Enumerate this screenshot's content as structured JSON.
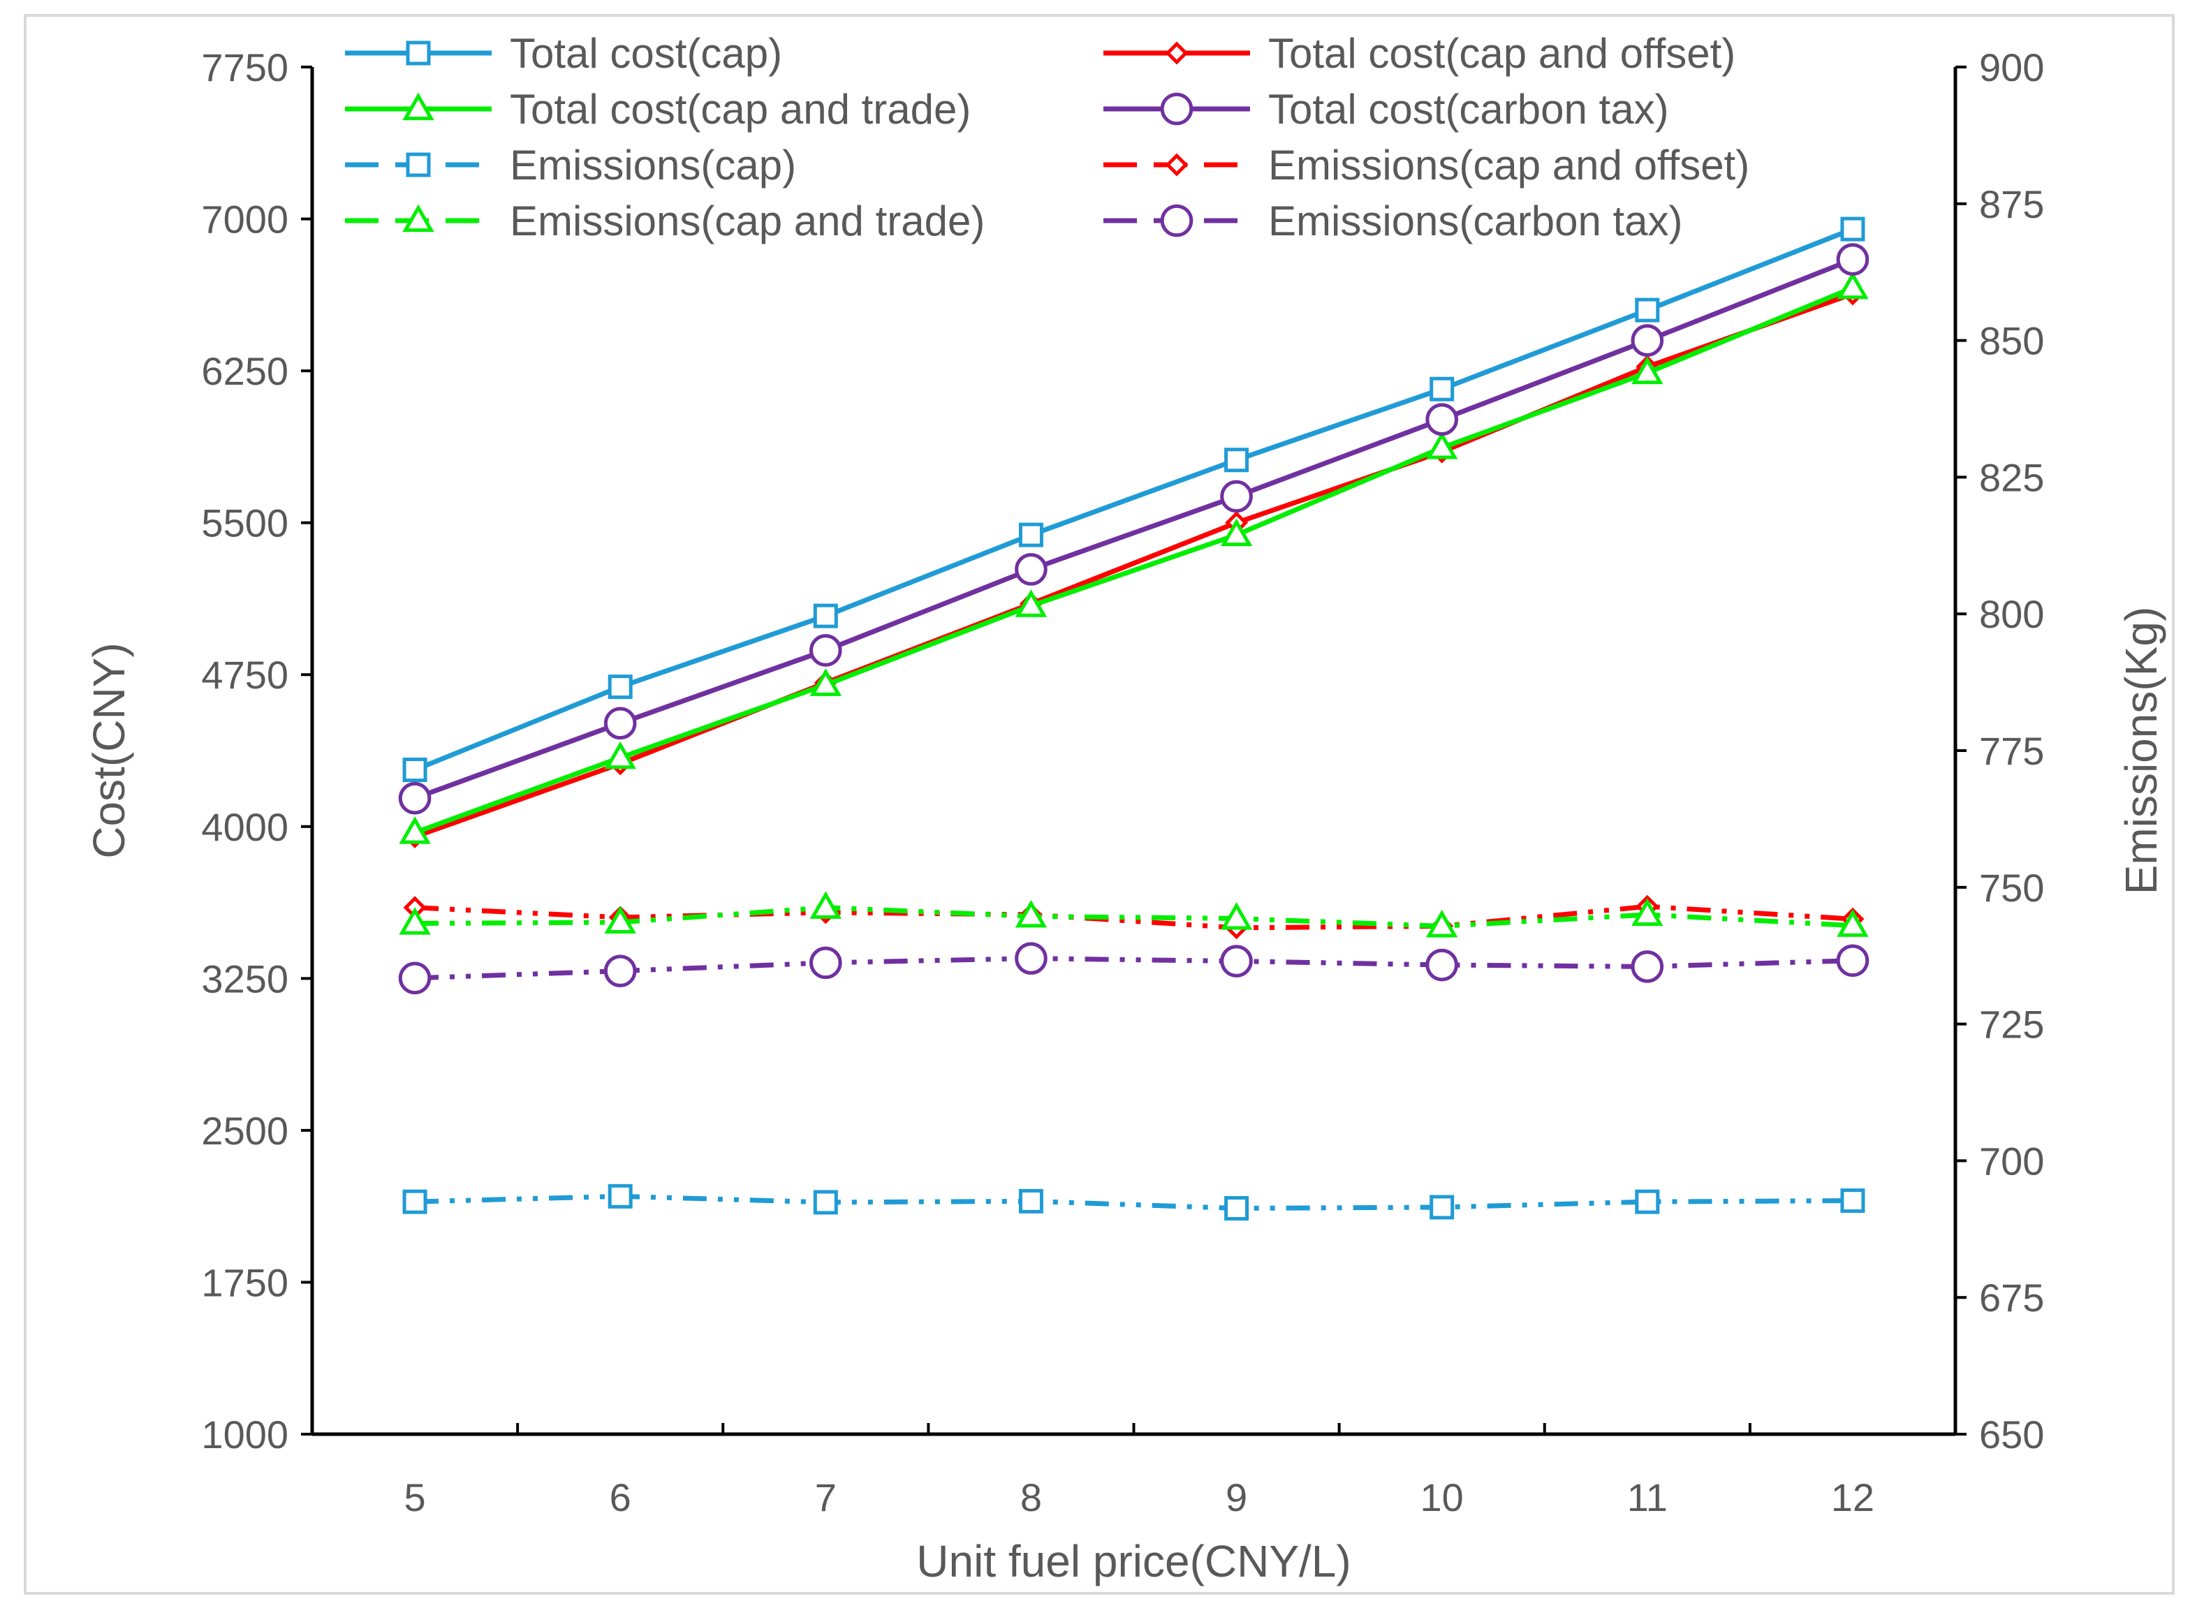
{
  "chart_data": {
    "type": "line",
    "title": "",
    "xlabel": "Unit fuel price(CNY/L)",
    "ylabel": "Cost(CNY)",
    "y2label": "Emissions(Kg)",
    "x": [
      5,
      6,
      7,
      8,
      9,
      10,
      11,
      12
    ],
    "x_tick_labels": [
      "5",
      "6",
      "7",
      "8",
      "9",
      "10",
      "11",
      "12"
    ],
    "ylim": [
      1000,
      7750
    ],
    "y_ticks": [
      1000,
      1750,
      2500,
      3250,
      4000,
      4750,
      5500,
      6250,
      7000,
      7750
    ],
    "y_tick_labels": [
      "1000",
      "1750",
      "2500",
      "3250",
      "4000",
      "4750",
      "5500",
      "6250",
      "7000",
      "7750"
    ],
    "y2lim": [
      650,
      900
    ],
    "y2_ticks": [
      650,
      675,
      700,
      725,
      750,
      775,
      800,
      825,
      850,
      875,
      900
    ],
    "y2_tick_labels": [
      "650",
      "675",
      "700",
      "725",
      "750",
      "775",
      "800",
      "825",
      "850",
      "875",
      "900"
    ],
    "grid": false,
    "legend_position": "top",
    "series": [
      {
        "name": "Total cost(cap)",
        "axis": "left",
        "color": "#1f9bd6",
        "marker": "square",
        "dash": "solid",
        "values": [
          4280,
          4690,
          5040,
          5440,
          5810,
          6160,
          6550,
          6950
        ]
      },
      {
        "name": "Total cost(cap and offset)",
        "axis": "left",
        "color": "#ff0000",
        "marker": "diamond",
        "dash": "solid",
        "values": [
          3950,
          4310,
          4710,
          5100,
          5500,
          5850,
          6270,
          6630
        ]
      },
      {
        "name": "Total cost(cap and trade)",
        "axis": "left",
        "color": "#00ee00",
        "marker": "triangle",
        "dash": "solid",
        "values": [
          3970,
          4340,
          4700,
          5090,
          5440,
          5870,
          6240,
          6660
        ]
      },
      {
        "name": "Total cost(carbon tax)",
        "axis": "left",
        "color": "#7030a0",
        "marker": "circle",
        "dash": "solid",
        "values": [
          4140,
          4510,
          4870,
          5270,
          5630,
          6010,
          6400,
          6800
        ]
      },
      {
        "name": "Emissions(cap)",
        "axis": "right",
        "color": "#1f9bd6",
        "marker": "square",
        "dash": "dashdot",
        "values": [
          692.5,
          693.5,
          692.4,
          692.6,
          691.3,
          691.5,
          692.5,
          692.7
        ]
      },
      {
        "name": "Emissions(cap and offset)",
        "axis": "right",
        "color": "#ff0000",
        "marker": "diamond",
        "dash": "dashdot",
        "values": [
          746.3,
          744.5,
          745.4,
          745.0,
          742.6,
          742.9,
          746.5,
          744.2
        ]
      },
      {
        "name": "Emissions(cap and trade)",
        "axis": "right",
        "color": "#00ee00",
        "marker": "triangle",
        "dash": "dashdot",
        "values": [
          743.4,
          743.6,
          746.3,
          744.7,
          744.3,
          742.9,
          745.0,
          743.0
        ]
      },
      {
        "name": "Emissions(carbon tax)",
        "axis": "right",
        "color": "#7030a0",
        "marker": "circle",
        "dash": "dashdot",
        "values": [
          733.4,
          734.7,
          736.2,
          737.0,
          736.5,
          735.8,
          735.5,
          736.6
        ]
      }
    ]
  }
}
